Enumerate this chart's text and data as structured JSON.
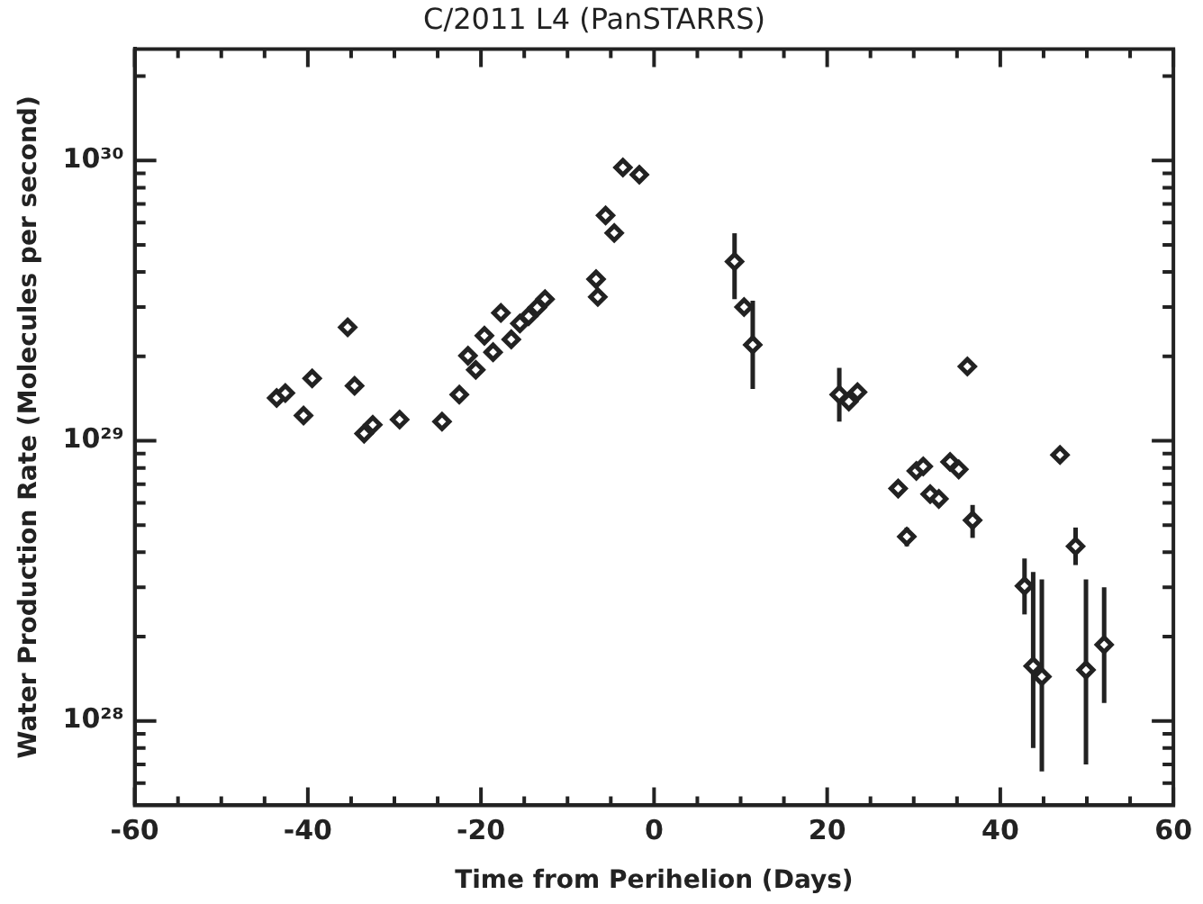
{
  "chart_data": {
    "type": "scatter",
    "title": "C/2011 L4 (PanSTARRS)",
    "xlabel": "Time from Perihelion (Days)",
    "ylabel": "Water Production Rate (Molecules per second)",
    "log": "y",
    "grid": false,
    "legend": false,
    "marker": "diamond",
    "xlim": [
      -60,
      60
    ],
    "xticks": [
      -60,
      {
        "value": -55,
        "label": null
      },
      {
        "value": -50,
        "label": null
      },
      {
        "value": -45,
        "label": null
      },
      -40,
      {
        "value": -35,
        "label": null
      },
      {
        "value": -30,
        "label": null
      },
      {
        "value": -25,
        "label": null
      },
      -20,
      {
        "value": -15,
        "label": null
      },
      {
        "value": -10,
        "label": null
      },
      {
        "value": -5,
        "label": null
      },
      0,
      {
        "value": 5,
        "label": null
      },
      {
        "value": 10,
        "label": null
      },
      {
        "value": 15,
        "label": null
      },
      20,
      {
        "value": 25,
        "label": null
      },
      {
        "value": 30,
        "label": null
      },
      {
        "value": 35,
        "label": null
      },
      40,
      {
        "value": 45,
        "label": null
      },
      {
        "value": 50,
        "label": null
      },
      {
        "value": 55,
        "label": null
      },
      60
    ],
    "ylim": [
      5e+27,
      2.5e+30
    ],
    "yticks": [
      {
        "value": 6e+27,
        "label": null
      },
      {
        "value": 7e+27,
        "label": null
      },
      {
        "value": 8e+27,
        "label": null
      },
      {
        "value": 9e+27,
        "label": null
      },
      {
        "value": 1e+28,
        "label": "10²⁸"
      },
      {
        "value": 2e+28,
        "label": null
      },
      {
        "value": 3e+28,
        "label": null
      },
      {
        "value": 4e+28,
        "label": null
      },
      {
        "value": 5e+28,
        "label": null
      },
      {
        "value": 6e+28,
        "label": null
      },
      {
        "value": 7e+28,
        "label": null
      },
      {
        "value": 8e+28,
        "label": null
      },
      {
        "value": 9e+28,
        "label": null
      },
      {
        "value": 1e+29,
        "label": "10²⁹"
      },
      {
        "value": 2e+29,
        "label": null
      },
      {
        "value": 3e+29,
        "label": null
      },
      {
        "value": 4e+29,
        "label": null
      },
      {
        "value": 5e+29,
        "label": null
      },
      {
        "value": 6e+29,
        "label": null
      },
      {
        "value": 7e+29,
        "label": null
      },
      {
        "value": 8e+29,
        "label": null
      },
      {
        "value": 9e+29,
        "label": null
      },
      {
        "value": 1e+30,
        "label": "10³⁰"
      },
      {
        "value": 2e+30,
        "label": null
      }
    ],
    "series": [
      {
        "color": "#222222",
        "x": [
          -43.6,
          -42.6,
          -39.5,
          -40.5,
          -35.4,
          -34.6,
          -33.5,
          -32.5,
          -29.4,
          -24.5,
          -22.5,
          -21.5,
          -20.6,
          -19.6,
          -18.6,
          -17.7,
          -16.5,
          -15.5,
          -14.5,
          -13.5,
          -12.6,
          -6.7,
          -6.5,
          -5.6,
          -4.6,
          -3.6,
          -1.7,
          9.3,
          10.4,
          11.4,
          21.4,
          22.5,
          23.5,
          36.2,
          28.2,
          29.2,
          30.3,
          31.1,
          31.9,
          32.9,
          34.2,
          35.2,
          36.8,
          42.8,
          43.8,
          44.8,
          46.9,
          48.7,
          49.9,
          52.0
        ],
        "values": [
          1.42e+29,
          1.48e+29,
          1.67e+29,
          1.23e+29,
          2.54e+29,
          1.57e+29,
          1.06e+29,
          1.14e+29,
          1.19e+29,
          1.17e+29,
          1.46e+29,
          2.01e+29,
          1.79e+29,
          2.37e+29,
          2.07e+29,
          2.86e+29,
          2.3e+29,
          2.62e+29,
          2.78e+29,
          2.99e+29,
          3.2e+29,
          3.77e+29,
          3.26e+29,
          6.37e+29,
          5.51e+29,
          9.44e+29,
          8.9e+29,
          4.36e+29,
          3e+29,
          2.2e+29,
          1.46e+29,
          1.38e+29,
          1.49e+29,
          1.84e+29,
          6.75e+28,
          4.55e+28,
          7.8e+28,
          8.1e+28,
          6.45e+28,
          6.2e+28,
          8.4e+28,
          7.9e+28,
          5.2e+28,
          3.03e+28,
          1.57e+28,
          1.44e+28,
          8.9e+28,
          4.2e+28,
          1.52e+28,
          1.87e+28
        ],
        "errors": [
          null,
          null,
          null,
          null,
          null,
          null,
          null,
          null,
          null,
          null,
          null,
          null,
          null,
          null,
          null,
          null,
          null,
          null,
          null,
          null,
          null,
          null,
          null,
          null,
          null,
          null,
          null,
          [
            3.2e+29,
            5.5e+29
          ],
          null,
          [
            1.53e+29,
            3.16e+29
          ],
          [
            1.17e+29,
            1.82e+29
          ],
          null,
          null,
          null,
          null,
          [
            4.2e+28,
            4.9e+28
          ],
          null,
          null,
          null,
          null,
          null,
          null,
          [
            4.5e+28,
            5.9e+28
          ],
          [
            2.4e+28,
            3.8e+28
          ],
          [
            8e+27,
            3.4e+28
          ],
          [
            6.6e+27,
            3.2e+28
          ],
          null,
          [
            3.6e+28,
            4.9e+28
          ],
          [
            7e+27,
            3.2e+28
          ],
          [
            1.16e+28,
            3e+28
          ]
        ]
      }
    ]
  }
}
